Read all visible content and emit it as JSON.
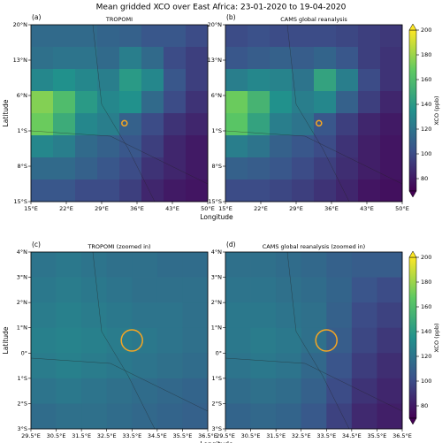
{
  "title": "Mean gridded XCO over East Africa: 23-01-2020 to 19-04-2020",
  "chart_data": [
    {
      "type": "heatmap",
      "panel": "(a)",
      "title": "TROPOMI",
      "xlabel": "Longitude",
      "ylabel": "Latitude",
      "colormap": "viridis",
      "xlim": [
        15,
        50
      ],
      "ylim": [
        -15,
        20
      ],
      "xticks": [
        {
          "value": 15,
          "label": "15°E"
        },
        {
          "value": 22,
          "label": "22°E"
        },
        {
          "value": 29,
          "label": "29°E"
        },
        {
          "value": 36,
          "label": "36°E"
        },
        {
          "value": 43,
          "label": "43°E"
        },
        {
          "value": 50,
          "label": "50°E"
        }
      ],
      "yticks": [
        {
          "value": 20,
          "label": "20°N"
        },
        {
          "value": 13,
          "label": "13°N"
        },
        {
          "value": 6,
          "label": "6°N"
        },
        {
          "value": -1,
          "label": "1°S"
        },
        {
          "value": -8,
          "label": "8°S"
        },
        {
          "value": -15,
          "label": "15°S"
        }
      ],
      "z": [
        [
          115,
          115,
          115,
          112,
          110,
          105,
          105,
          100
        ],
        [
          118,
          120,
          120,
          115,
          125,
          115,
          100,
          95
        ],
        [
          130,
          135,
          130,
          125,
          140,
          130,
          105,
          95
        ],
        [
          175,
          160,
          140,
          130,
          135,
          115,
          100,
          90
        ],
        [
          170,
          150,
          130,
          125,
          110,
          100,
          90,
          85
        ],
        [
          130,
          125,
          115,
          110,
          105,
          95,
          85,
          80
        ],
        [
          115,
          115,
          110,
          105,
          100,
          90,
          85,
          80
        ],
        [
          105,
          105,
          100,
          100,
          95,
          85,
          80,
          78
        ]
      ]
    },
    {
      "type": "heatmap",
      "panel": "(b)",
      "title": "CAMS global reanalysis",
      "colormap": "viridis",
      "xlim": [
        15,
        50
      ],
      "ylim": [
        -15,
        20
      ],
      "xticks": [
        {
          "value": 15,
          "label": "15°E"
        },
        {
          "value": 22,
          "label": "22°E"
        },
        {
          "value": 29,
          "label": "29°E"
        },
        {
          "value": 36,
          "label": "36°E"
        },
        {
          "value": 43,
          "label": "43°E"
        },
        {
          "value": 50,
          "label": "50°E"
        }
      ],
      "yticks": [
        {
          "value": 20,
          "label": "20°N"
        },
        {
          "value": 13,
          "label": "13°N"
        },
        {
          "value": 6,
          "label": "6°N"
        },
        {
          "value": -1,
          "label": "1°S"
        },
        {
          "value": -8,
          "label": "8°S"
        },
        {
          "value": -15,
          "label": "15°S"
        }
      ],
      "z": [
        [
          100,
          102,
          100,
          100,
          100,
          98,
          95,
          92
        ],
        [
          105,
          108,
          110,
          108,
          112,
          105,
          95,
          90
        ],
        [
          125,
          130,
          128,
          120,
          145,
          125,
          100,
          90
        ],
        [
          170,
          155,
          135,
          125,
          130,
          110,
          95,
          85
        ],
        [
          165,
          145,
          125,
          120,
          105,
          95,
          85,
          80
        ],
        [
          125,
          120,
          110,
          105,
          100,
          90,
          82,
          78
        ],
        [
          110,
          108,
          105,
          100,
          95,
          88,
          82,
          78
        ],
        [
          100,
          100,
          98,
          95,
          90,
          85,
          78,
          76
        ]
      ],
      "colorbar": {
        "label": "XCO (ppb)",
        "lim": [
          70,
          200
        ],
        "ticks": [
          80,
          100,
          120,
          140,
          160,
          180,
          200
        ]
      }
    },
    {
      "type": "heatmap",
      "panel": "(c)",
      "title": "TROPOMI (zoomed in)",
      "xlabel": "Longitude",
      "ylabel": "Latitude",
      "colormap": "viridis",
      "xlim": [
        29.5,
        36.5
      ],
      "ylim": [
        -3,
        4
      ],
      "xticks": [
        {
          "value": 29.5,
          "label": "29.5°E"
        },
        {
          "value": 30.5,
          "label": "30.5°E"
        },
        {
          "value": 31.5,
          "label": "31.5°E"
        },
        {
          "value": 32.5,
          "label": "32.5°E"
        },
        {
          "value": 33.5,
          "label": "33.5°E"
        },
        {
          "value": 34.5,
          "label": "34.5°E"
        },
        {
          "value": 35.5,
          "label": "35.5°E"
        },
        {
          "value": 36.5,
          "label": "36.5°E"
        }
      ],
      "yticks": [
        {
          "value": 4,
          "label": "4°N"
        },
        {
          "value": 3,
          "label": "3°N"
        },
        {
          "value": 2,
          "label": "2°N"
        },
        {
          "value": 1,
          "label": "1°N"
        },
        {
          "value": 0,
          "label": "0°"
        },
        {
          "value": -1,
          "label": "1°S"
        },
        {
          "value": -2,
          "label": "2°S"
        },
        {
          "value": -3,
          "label": "3°S"
        }
      ],
      "z": [
        [
          120,
          122,
          120,
          118,
          118,
          116,
          116
        ],
        [
          122,
          124,
          122,
          120,
          118,
          118,
          118
        ],
        [
          124,
          126,
          124,
          122,
          120,
          120,
          118
        ],
        [
          126,
          128,
          126,
          124,
          122,
          120,
          118
        ],
        [
          124,
          126,
          124,
          122,
          120,
          118,
          116
        ],
        [
          120,
          122,
          120,
          118,
          116,
          114,
          112
        ],
        [
          116,
          118,
          118,
          116,
          114,
          112,
          110
        ]
      ]
    },
    {
      "type": "heatmap",
      "panel": "(d)",
      "title": "CAMS global reanalysis (zoomed in)",
      "colormap": "viridis",
      "xlim": [
        29.5,
        36.5
      ],
      "ylim": [
        -3,
        4
      ],
      "xticks": [
        {
          "value": 29.5,
          "label": "29.5°E"
        },
        {
          "value": 30.5,
          "label": "30.5°E"
        },
        {
          "value": 31.5,
          "label": "31.5°E"
        },
        {
          "value": 32.5,
          "label": "32.5°E"
        },
        {
          "value": 33.5,
          "label": "33.5°E"
        },
        {
          "value": 34.5,
          "label": "34.5°E"
        },
        {
          "value": 35.5,
          "label": "35.5°E"
        },
        {
          "value": 36.5,
          "label": "36.5°E"
        }
      ],
      "yticks": [
        {
          "value": 4,
          "label": "4°N"
        },
        {
          "value": 3,
          "label": "3°N"
        },
        {
          "value": 2,
          "label": "2°N"
        },
        {
          "value": 1,
          "label": "1°N"
        },
        {
          "value": 0,
          "label": "0°"
        },
        {
          "value": -1,
          "label": "1°S"
        },
        {
          "value": -2,
          "label": "2°S"
        },
        {
          "value": -3,
          "label": "3°S"
        }
      ],
      "z": [
        [
          118,
          118,
          116,
          114,
          110,
          108,
          108
        ],
        [
          120,
          120,
          118,
          116,
          112,
          104,
          100
        ],
        [
          122,
          122,
          120,
          118,
          110,
          100,
          96
        ],
        [
          122,
          124,
          122,
          118,
          108,
          98,
          92
        ],
        [
          120,
          122,
          120,
          114,
          104,
          94,
          88
        ],
        [
          116,
          118,
          116,
          110,
          100,
          90,
          85
        ],
        [
          112,
          114,
          112,
          106,
          96,
          86,
          82
        ]
      ],
      "colorbar": {
        "label": "XCO (ppb)",
        "lim": [
          70,
          200
        ],
        "ticks": [
          80,
          100,
          120,
          140,
          160,
          180,
          200
        ]
      }
    }
  ]
}
